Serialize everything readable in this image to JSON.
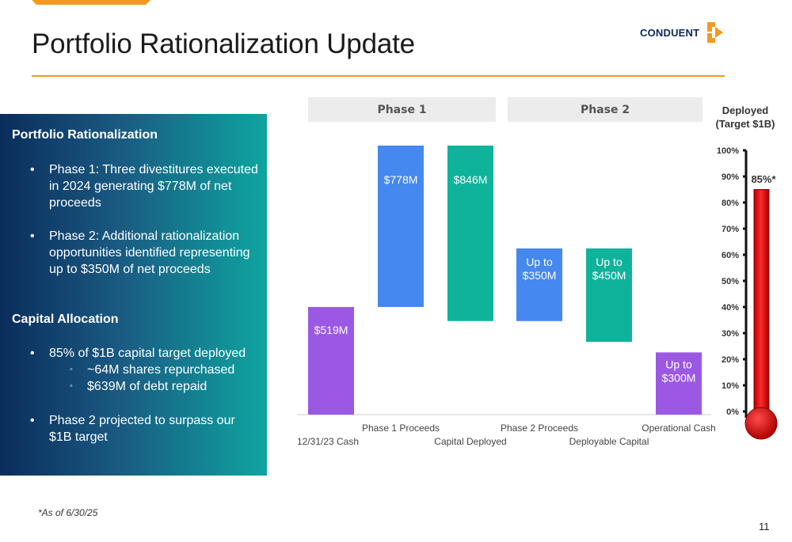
{
  "slide": {
    "title": "Portfolio Rationalization Update",
    "logo_text": "CONDUENT",
    "footnote": "*As of 6/30/25",
    "page_number": "11"
  },
  "panel": {
    "heading1": "Portfolio Rationalization",
    "bullet1": "Phase 1: Three divestitures executed in 2024 generating $778M of net proceeds",
    "bullet2": "Phase 2: Additional rationalization opportunities identified representing up to $350M of net proceeds",
    "heading2": "Capital Allocation",
    "bullet3": "85% of $1B capital target deployed",
    "sub1": "~64M shares repurchased",
    "sub2": "$639M of debt repaid",
    "bullet4": "Phase 2 projected to surpass our $1B target",
    "bullet_char": "•",
    "sub_bullet_char": "◦"
  },
  "phases": {
    "phase1": "Phase 1",
    "phase2": "Phase 2"
  },
  "deployed": {
    "title_line1": "Deployed",
    "title_line2": "(Target $1B)",
    "value_label": "85%*",
    "fraction": 0.85
  },
  "colors": {
    "purple": "#9b59e3",
    "blue": "#4488f0",
    "teal": "#0fb39b",
    "orange": "#f39a1f",
    "red": "#dd0000"
  },
  "chart_data": [
    {
      "type": "bar",
      "subtype": "waterfall",
      "categories": [
        "12/31/23 Cash",
        "Phase 1 Proceeds",
        "Capital Deployed",
        "Phase 2 Proceeds",
        "Deployable Capital",
        "Operational Cash"
      ],
      "bars": [
        {
          "label": "$519M",
          "value": 519,
          "base": 0,
          "color": "purple"
        },
        {
          "label": "$778M",
          "value": 778,
          "base": 519,
          "color": "blue"
        },
        {
          "label": "$846M",
          "value": 846,
          "base": 451,
          "color": "teal"
        },
        {
          "label": "Up to\n$350M",
          "value": 350,
          "base": 451,
          "color": "blue"
        },
        {
          "label": "Up to\n$450M",
          "value": 450,
          "base": 351,
          "color": "teal"
        },
        {
          "label": "Up to\n$300M",
          "value": 300,
          "base": 0,
          "color": "purple"
        }
      ],
      "ylim": [
        0,
        1297
      ]
    },
    {
      "type": "bar",
      "subtype": "thermometer",
      "ticks": [
        "100%",
        "90%",
        "80%",
        "70%",
        "60%",
        "50%",
        "40%",
        "30%",
        "20%",
        "10%",
        "0%"
      ],
      "value": 85,
      "ylim": [
        0,
        100
      ]
    }
  ]
}
